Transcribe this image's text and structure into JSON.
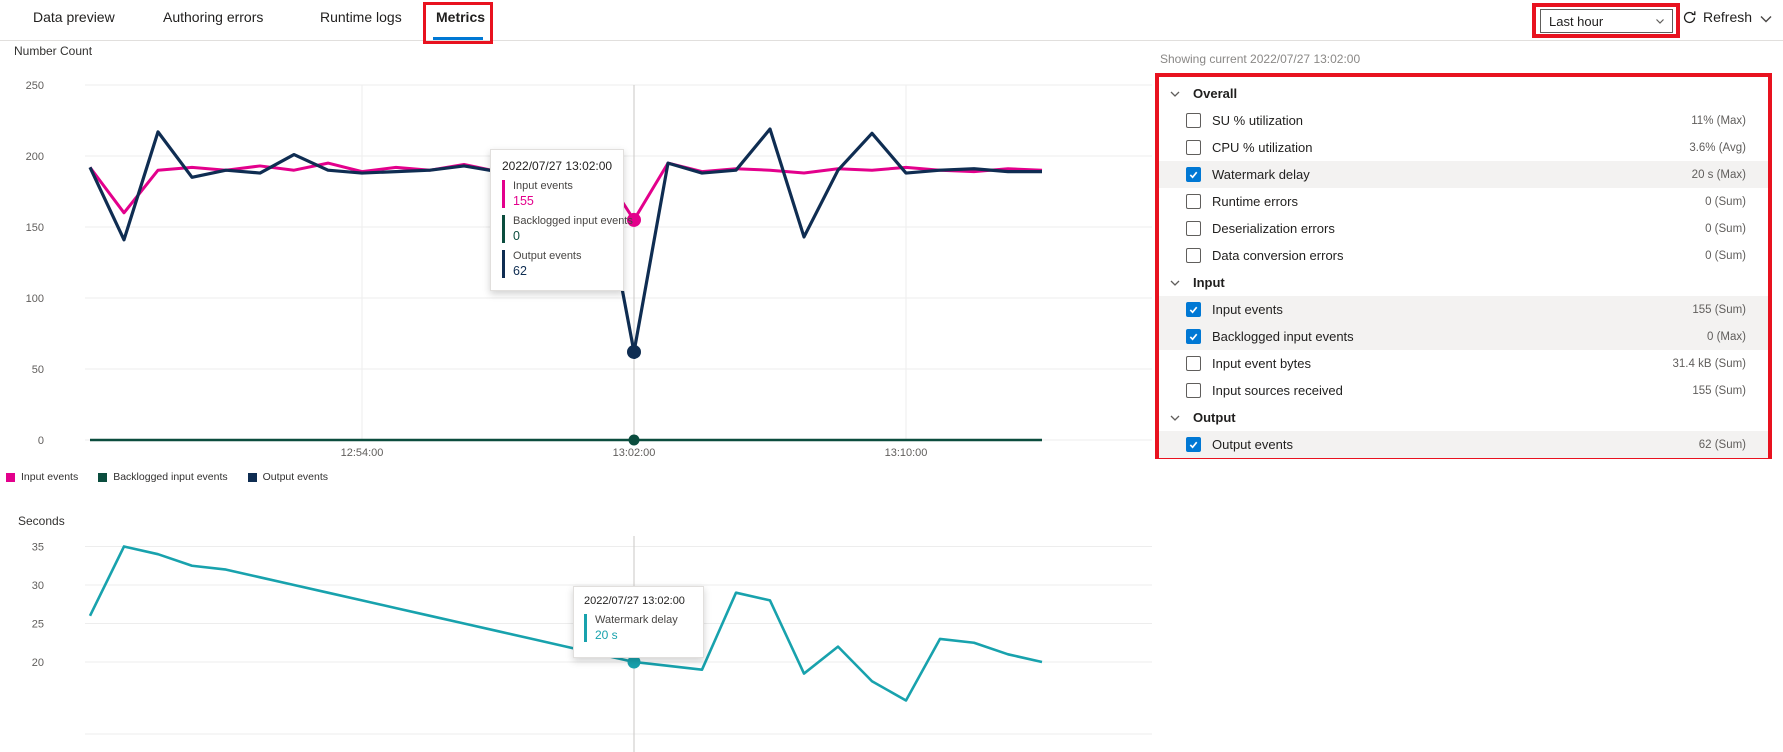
{
  "tabs": [
    {
      "label": "Data preview",
      "active": false
    },
    {
      "label": "Authoring errors",
      "active": false
    },
    {
      "label": "Runtime logs",
      "active": false
    },
    {
      "label": "Metrics",
      "active": true
    }
  ],
  "toolbar": {
    "time_range": "Last hour",
    "refresh_label": "Refresh",
    "refresh_icon": "refresh-circular-arrow",
    "collapse_icon": "chevron-down"
  },
  "colors": {
    "accent_blue": "#0078d4",
    "annotation_red": "#e8121f",
    "input_events": "#e3008c",
    "backlogged_input_events": "#0b4d3e",
    "output_events": "#0f2d52",
    "watermark_delay": "#18a2ad",
    "row_highlight": "#f3f2f1",
    "gridline": "#ededed"
  },
  "metrics_panel": {
    "showing_label": "Showing current 2022/07/27 13:02:00",
    "sections": [
      {
        "name": "Overall",
        "rows": [
          {
            "label": "SU % utilization",
            "value": "11% (Max)",
            "checked": false,
            "highlighted": false
          },
          {
            "label": "CPU % utilization",
            "value": "3.6% (Avg)",
            "checked": false,
            "highlighted": false
          },
          {
            "label": "Watermark delay",
            "value": "20 s (Max)",
            "checked": true,
            "highlighted": true
          },
          {
            "label": "Runtime errors",
            "value": "0 (Sum)",
            "checked": false,
            "highlighted": false
          },
          {
            "label": "Deserialization errors",
            "value": "0 (Sum)",
            "checked": false,
            "highlighted": false
          },
          {
            "label": "Data conversion errors",
            "value": "0 (Sum)",
            "checked": false,
            "highlighted": false
          }
        ]
      },
      {
        "name": "Input",
        "rows": [
          {
            "label": "Input events",
            "value": "155 (Sum)",
            "checked": true,
            "highlighted": true
          },
          {
            "label": "Backlogged input events",
            "value": "0 (Max)",
            "checked": true,
            "highlighted": true
          },
          {
            "label": "Input event bytes",
            "value": "31.4 kB (Sum)",
            "checked": false,
            "highlighted": false
          },
          {
            "label": "Input sources received",
            "value": "155 (Sum)",
            "checked": false,
            "highlighted": false
          }
        ]
      },
      {
        "name": "Output",
        "rows": [
          {
            "label": "Output events",
            "value": "62 (Sum)",
            "checked": true,
            "highlighted": true
          }
        ]
      }
    ]
  },
  "chart_data": [
    {
      "type": "line",
      "title": "Number Count",
      "ylim": [
        0,
        250
      ],
      "yticks": [
        0,
        50,
        100,
        150,
        200,
        250
      ],
      "x_tick_labels": [
        "12:54:00",
        "13:02:00",
        "13:10:00"
      ],
      "x_tick_indices": [
        8,
        16,
        24
      ],
      "x_times": [
        "12:46:00",
        "12:47:00",
        "12:48:00",
        "12:49:00",
        "12:50:00",
        "12:51:00",
        "12:52:00",
        "12:53:00",
        "12:54:00",
        "12:55:00",
        "12:56:00",
        "12:57:00",
        "12:58:00",
        "12:59:00",
        "13:00:00",
        "13:01:00",
        "13:02:00",
        "13:03:00",
        "13:04:00",
        "13:05:00",
        "13:06:00",
        "13:07:00",
        "13:08:00",
        "13:09:00",
        "13:10:00",
        "13:11:00",
        "13:12:00",
        "13:13:00",
        "13:14:00"
      ],
      "selected_index": 16,
      "selected_time": "2022/07/27 13:02:00",
      "grid": "horizontal-and-ticks",
      "legend_position": "bottom-left",
      "series": [
        {
          "name": "Input events",
          "color": "#e3008c",
          "values": [
            192,
            160,
            190,
            192,
            190,
            193,
            190,
            195,
            189,
            192,
            190,
            194,
            189,
            191,
            190,
            192,
            155,
            195,
            189,
            191,
            190,
            188,
            191,
            190,
            192,
            190,
            189,
            191,
            190
          ]
        },
        {
          "name": "Backlogged input events",
          "color": "#0b4d3e",
          "values": [
            0,
            0,
            0,
            0,
            0,
            0,
            0,
            0,
            0,
            0,
            0,
            0,
            0,
            0,
            0,
            0,
            0,
            0,
            0,
            0,
            0,
            0,
            0,
            0,
            0,
            0,
            0,
            0,
            0
          ]
        },
        {
          "name": "Output events",
          "color": "#0f2d52",
          "values": [
            192,
            141,
            217,
            185,
            190,
            188,
            201,
            190,
            188,
            189,
            190,
            193,
            189,
            191,
            190,
            189,
            62,
            195,
            188,
            190,
            219,
            143,
            190,
            216,
            188,
            190,
            191,
            189,
            189
          ]
        }
      ]
    },
    {
      "type": "line",
      "title": "Seconds",
      "ylim": [
        13,
        36
      ],
      "yticks": [
        20,
        25,
        30,
        35
      ],
      "x_tick_labels": [],
      "selected_index": 16,
      "selected_time": "2022/07/27 13:02:00",
      "grid": "horizontal",
      "series": [
        {
          "name": "Watermark delay",
          "color": "#18a2ad",
          "values": [
            26,
            35,
            34,
            32.5,
            32,
            31,
            30,
            29,
            28,
            27,
            26,
            25,
            24,
            23,
            22,
            21,
            20,
            19.5,
            19,
            29,
            28,
            18.5,
            22,
            17.5,
            15,
            23,
            22.5,
            21,
            20
          ]
        }
      ]
    }
  ],
  "tooltips": {
    "top": {
      "title": "2022/07/27 13:02:00",
      "entries": [
        {
          "label": "Input events",
          "value": "155",
          "color": "#e3008c"
        },
        {
          "label": "Backlogged input events",
          "value": "0",
          "color": "#0b4d3e"
        },
        {
          "label": "Output events",
          "value": "62",
          "color": "#0f2d52"
        }
      ]
    },
    "bottom": {
      "title": "2022/07/27 13:02:00",
      "entries": [
        {
          "label": "Watermark delay",
          "value": "20 s",
          "color": "#18a2ad"
        }
      ]
    }
  }
}
